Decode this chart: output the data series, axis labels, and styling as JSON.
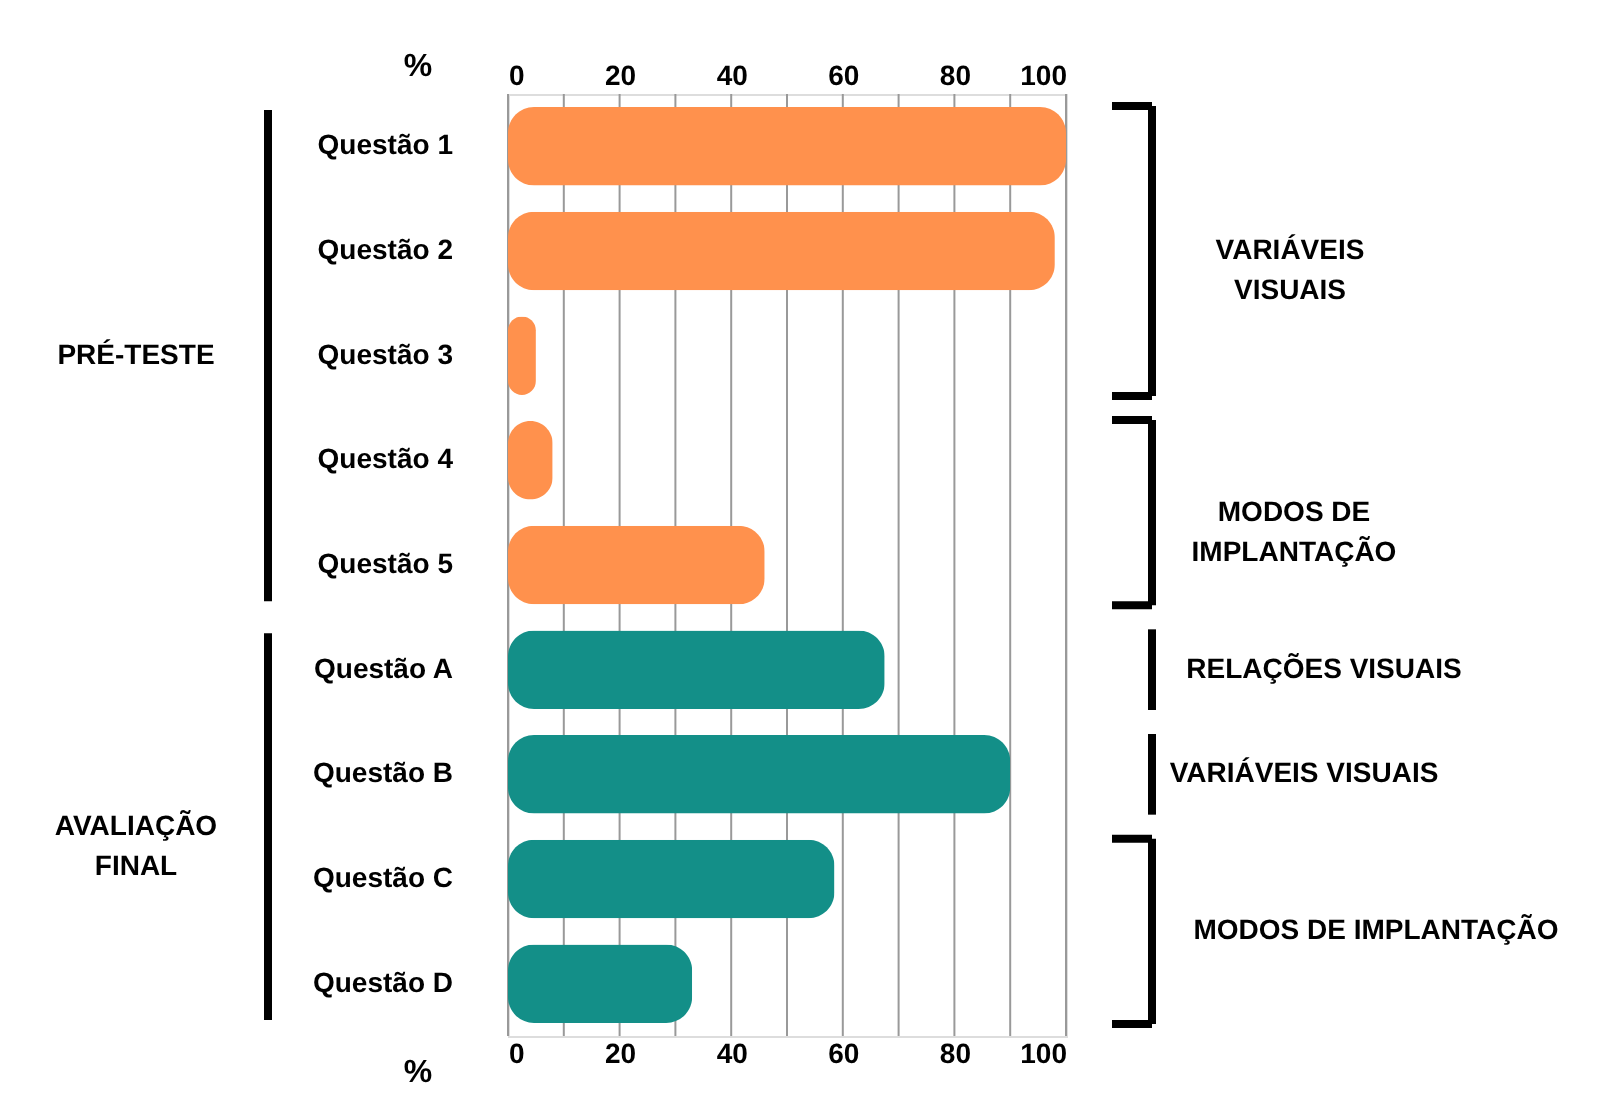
{
  "chart_data": {
    "type": "bar",
    "orientation": "horizontal",
    "categories": [
      "Questão 1",
      "Questão 2",
      "Questão 3",
      "Questão 4",
      "Questão 5",
      "Questão A",
      "Questão B",
      "Questão C",
      "Questão D"
    ],
    "values": [
      100,
      98,
      5,
      8,
      46,
      67.5,
      90,
      58.5,
      33
    ],
    "colors": [
      "#ff914d",
      "#ff914d",
      "#ff914d",
      "#ff914d",
      "#ff914d",
      "#138f88",
      "#138f88",
      "#138f88",
      "#138f88"
    ],
    "xlabel": "%",
    "x2label": "%",
    "xlim": [
      0,
      100
    ],
    "x2lim": [
      0,
      100
    ],
    "xticks": [
      0,
      {
        "value": 10,
        "label": null
      },
      20,
      {
        "value": 30,
        "label": null
      },
      40,
      {
        "value": 50,
        "label": null
      },
      60,
      {
        "value": 70,
        "label": null
      },
      80,
      {
        "value": 90,
        "label": null
      },
      100
    ],
    "x2ticks": [
      0,
      {
        "value": 10,
        "label": null
      },
      20,
      {
        "value": 30,
        "label": null
      },
      40,
      {
        "value": 50,
        "label": null
      },
      60,
      {
        "value": 70,
        "label": null
      },
      80,
      {
        "value": 90,
        "label": null
      },
      100
    ],
    "grid": "x",
    "annotations": [
      "PRÉ-TESTE",
      "AVALIAÇÃO\nFINAL",
      "VARIÁVEIS\nVISUAIS",
      "MODOS DE\nIMPLANTAÇÃO",
      "RELAÇÕES VISUAIS",
      "VARIÁVEIS VISUAIS",
      "MODOS DE IMPLANTAÇÃO"
    ]
  }
}
